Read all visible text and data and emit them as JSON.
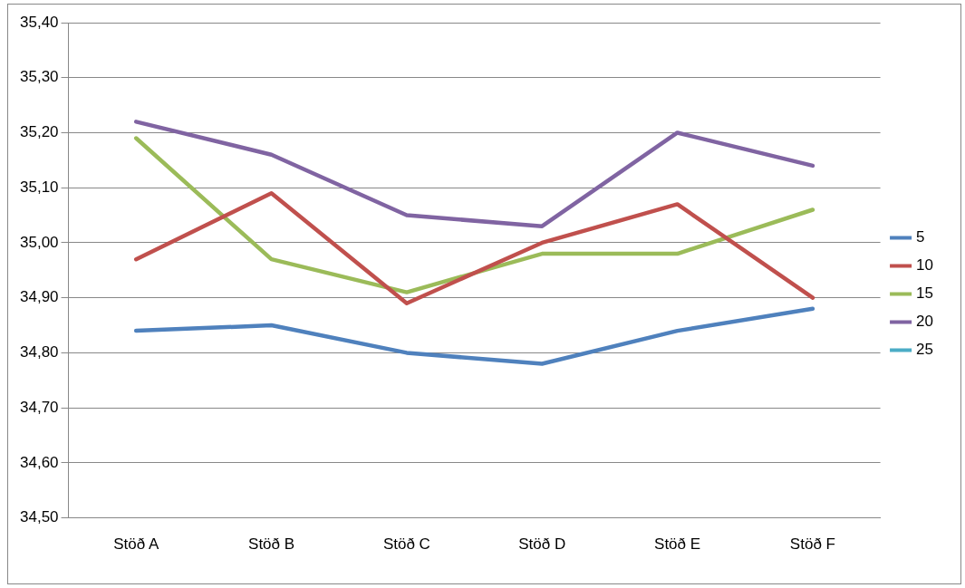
{
  "chart_data": {
    "type": "line",
    "categories": [
      "Stöð A",
      "Stöð B",
      "Stöð C",
      "Stöð D",
      "Stöð E",
      "Stöð F"
    ],
    "series": [
      {
        "name": "5",
        "color": "#4f81bd",
        "values": [
          34.84,
          34.85,
          34.8,
          34.78,
          34.84,
          34.88
        ]
      },
      {
        "name": "10",
        "color": "#c0504d",
        "values": [
          34.97,
          35.09,
          34.89,
          35.0,
          35.07,
          34.9
        ]
      },
      {
        "name": "15",
        "color": "#9bbb59",
        "values": [
          35.19,
          34.97,
          34.91,
          34.98,
          34.98,
          35.06
        ]
      },
      {
        "name": "20",
        "color": "#8064a2",
        "values": [
          35.22,
          35.16,
          35.05,
          35.03,
          35.2,
          35.14
        ]
      },
      {
        "name": "25",
        "color": "#4bacc6",
        "values": [
          null,
          null,
          null,
          null,
          null,
          null
        ]
      }
    ],
    "ylim": [
      34.5,
      35.4
    ],
    "yticks": [
      {
        "value": 34.5,
        "label": "34,50"
      },
      {
        "value": 34.6,
        "label": "34,60"
      },
      {
        "value": 34.7,
        "label": "34,70"
      },
      {
        "value": 34.8,
        "label": "34,80"
      },
      {
        "value": 34.9,
        "label": "34,90"
      },
      {
        "value": 35.0,
        "label": "35,00"
      },
      {
        "value": 35.1,
        "label": "35,10"
      },
      {
        "value": 35.2,
        "label": "35,20"
      },
      {
        "value": 35.3,
        "label": "35,30"
      },
      {
        "value": 35.4,
        "label": "35,40"
      }
    ],
    "grid": "y",
    "legend": "right",
    "marker": "none",
    "line_style": "solid"
  }
}
